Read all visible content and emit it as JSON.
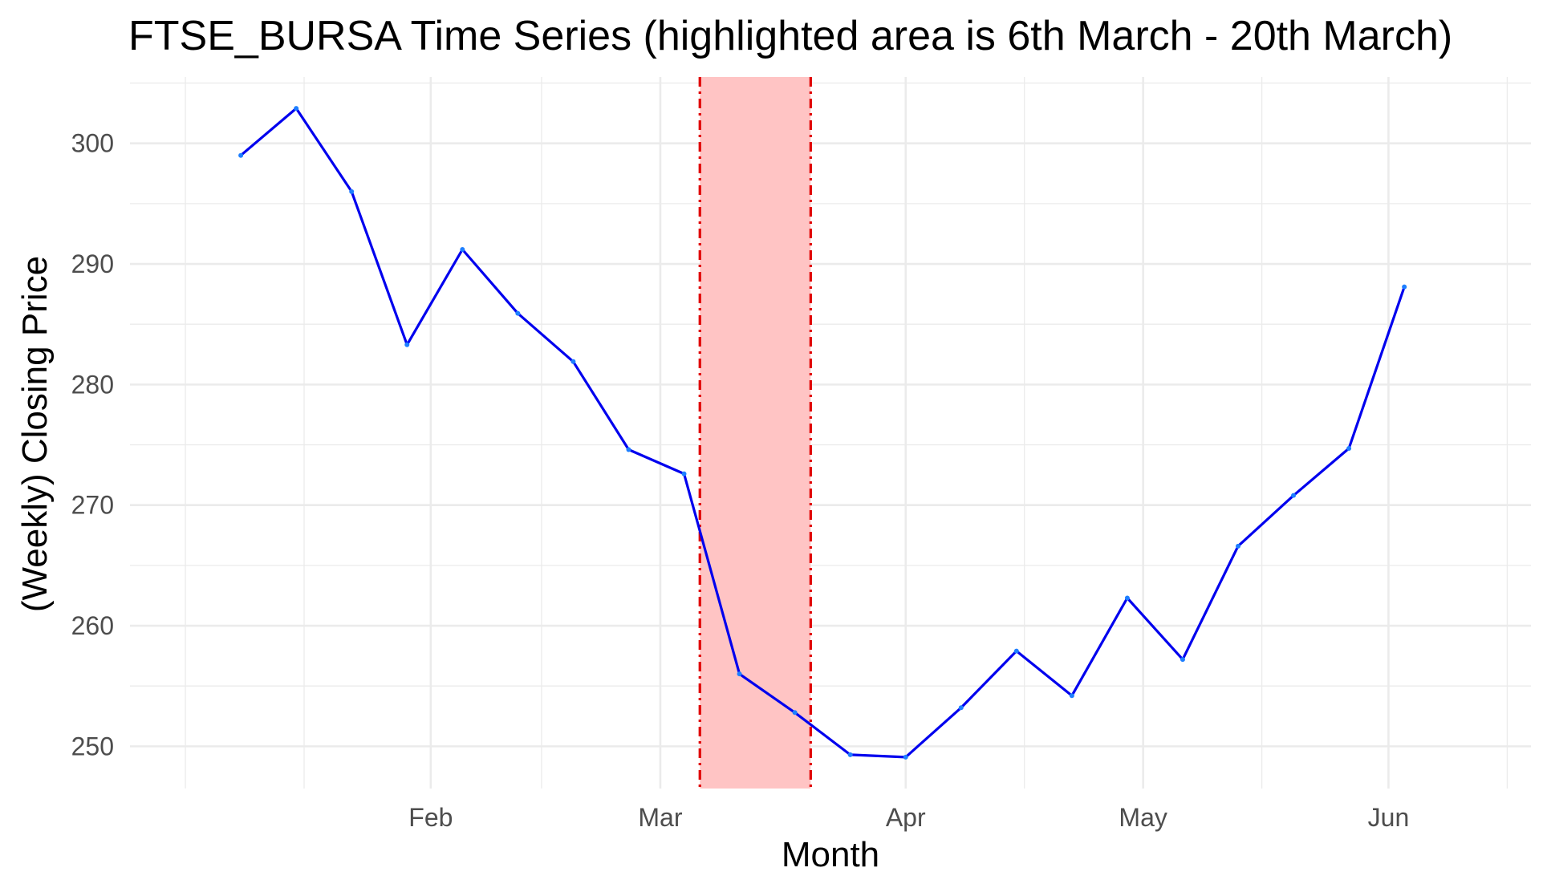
{
  "chart_data": {
    "type": "line",
    "title": "FTSE_BURSA Time Series (highlighted area is 6th March - 20th March)",
    "xlabel": "Month",
    "ylabel": "(Weekly) Closing Price",
    "x_tick_labels": [
      {
        "label": "Feb",
        "date": "2020-02-01"
      },
      {
        "label": "Mar",
        "date": "2020-03-01"
      },
      {
        "label": "Apr",
        "date": "2020-04-01"
      },
      {
        "label": "May",
        "date": "2020-05-01"
      },
      {
        "label": "Jun",
        "date": "2020-06-01"
      }
    ],
    "x_minor_dates": [
      "2020-01-01",
      "2020-01-16",
      "2020-02-15",
      "2020-03-16",
      "2020-04-16",
      "2020-05-16",
      "2020-06-16"
    ],
    "y_ticks": [
      250,
      260,
      270,
      280,
      290,
      300
    ],
    "y_minor_ticks": [
      255,
      265,
      275,
      285,
      295,
      305
    ],
    "xlim": [
      "2019-12-25",
      "2020-06-19"
    ],
    "ylim": [
      246.5,
      305.5
    ],
    "highlight": {
      "start": "2020-03-06",
      "end": "2020-03-20",
      "fill": "#ffc4c4",
      "line_color": "#e00000"
    },
    "line_color": "#0000ee",
    "point_color": "#1e7fff",
    "grid": true,
    "legend": "none",
    "series": [
      {
        "x": [
          "2020-01-08",
          "2020-01-15",
          "2020-01-22",
          "2020-01-29",
          "2020-02-05",
          "2020-02-12",
          "2020-02-19",
          "2020-02-26",
          "2020-03-04",
          "2020-03-11",
          "2020-03-18",
          "2020-03-25",
          "2020-04-01",
          "2020-04-08",
          "2020-04-15",
          "2020-04-22",
          "2020-04-29",
          "2020-05-06",
          "2020-05-13",
          "2020-05-20",
          "2020-05-27",
          "2020-06-03"
        ],
        "values": [
          299.0,
          302.9,
          296.0,
          283.3,
          291.2,
          285.9,
          281.9,
          274.6,
          272.6,
          256.0,
          252.8,
          249.3,
          249.1,
          253.2,
          257.9,
          254.2,
          262.3,
          257.2,
          266.6,
          270.8,
          274.7,
          288.1
        ]
      }
    ]
  }
}
